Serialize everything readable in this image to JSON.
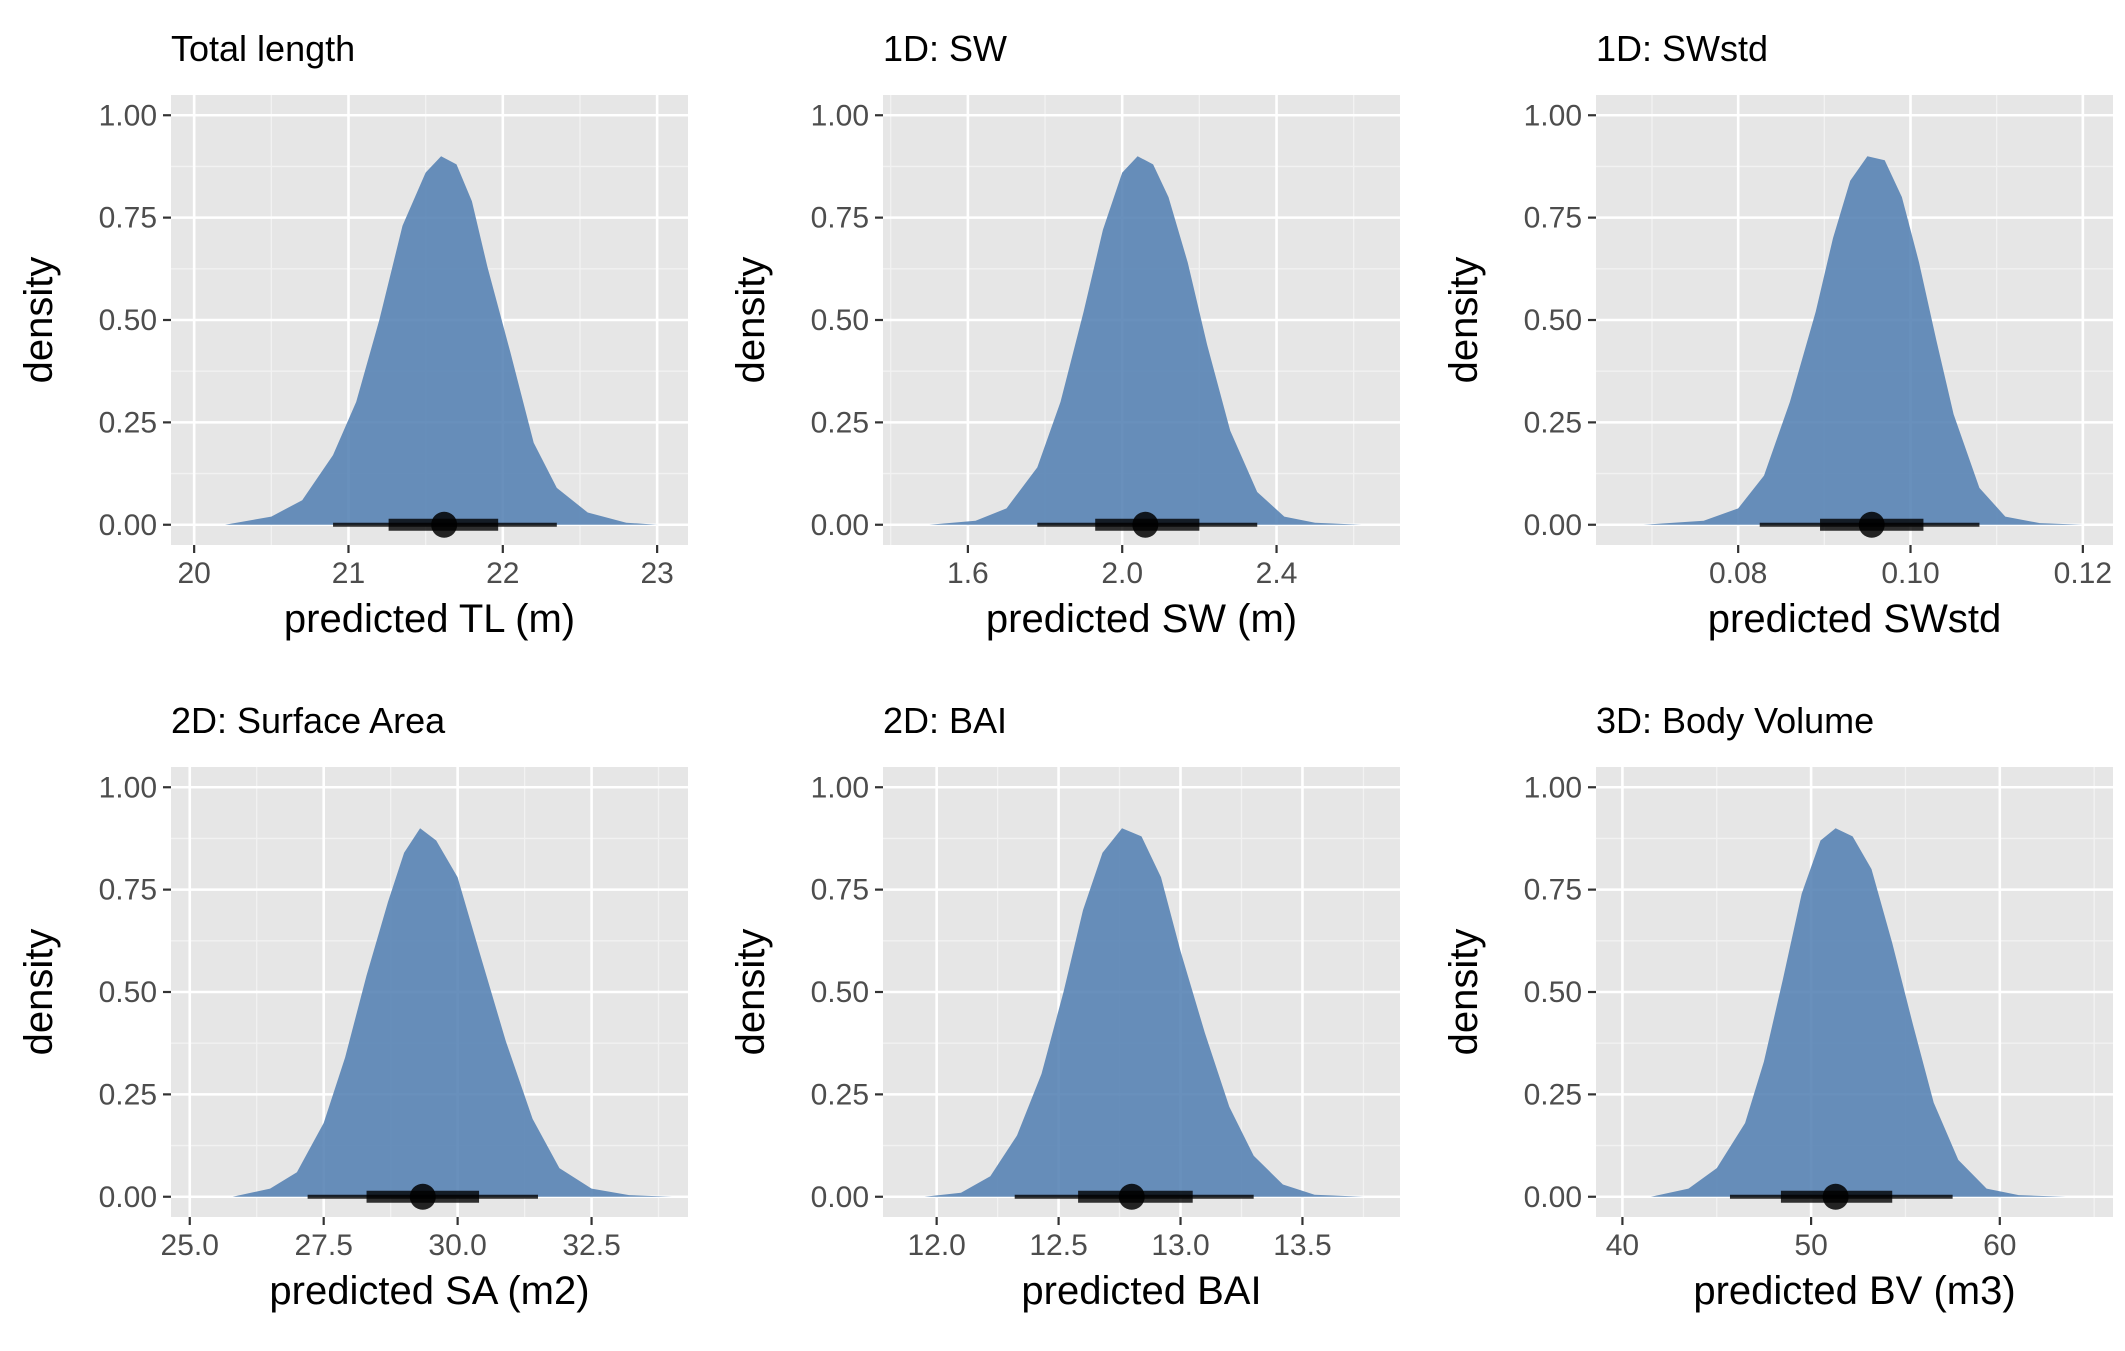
{
  "chart_data": [
    {
      "type": "area",
      "title": "Total length",
      "xlabel": "predicted TL (m)",
      "ylabel": "density",
      "xlim": [
        19.85,
        23.2
      ],
      "ylim": [
        0,
        1
      ],
      "x_ticks": [
        20,
        21,
        22,
        23
      ],
      "x_tick_labels": [
        "20",
        "21",
        "22",
        "23"
      ],
      "y_ticks": [
        0,
        0.25,
        0.5,
        0.75,
        1
      ],
      "y_tick_labels": [
        "0.00",
        "0.25",
        "0.50",
        "0.75",
        "1.00"
      ],
      "x": [
        20.2,
        20.5,
        20.7,
        20.9,
        21.05,
        21.2,
        21.35,
        21.5,
        21.6,
        21.7,
        21.8,
        21.9,
        22.05,
        22.2,
        22.35,
        22.55,
        22.8,
        23.0
      ],
      "y": [
        0.0,
        0.02,
        0.06,
        0.17,
        0.3,
        0.5,
        0.73,
        0.86,
        0.9,
        0.88,
        0.79,
        0.63,
        0.42,
        0.2,
        0.09,
        0.03,
        0.005,
        0.0
      ],
      "point_estimate": 21.62,
      "interval_66": [
        21.26,
        21.97
      ],
      "interval_95": [
        20.9,
        22.35
      ]
    },
    {
      "type": "area",
      "title": "1D: SW",
      "xlabel": "predicted SW (m)",
      "ylabel": "density",
      "xlim": [
        1.38,
        2.72
      ],
      "ylim": [
        0,
        1
      ],
      "x_ticks": [
        1.6,
        2.0,
        2.4
      ],
      "x_tick_labels": [
        "1.6",
        "2.0",
        "2.4"
      ],
      "y_ticks": [
        0,
        0.25,
        0.5,
        0.75,
        1
      ],
      "y_tick_labels": [
        "0.00",
        "0.25",
        "0.50",
        "0.75",
        "1.00"
      ],
      "x": [
        1.5,
        1.62,
        1.7,
        1.78,
        1.84,
        1.9,
        1.95,
        2.0,
        2.04,
        2.08,
        2.12,
        2.17,
        2.22,
        2.28,
        2.35,
        2.42,
        2.5,
        2.62
      ],
      "y": [
        0.0,
        0.01,
        0.04,
        0.14,
        0.3,
        0.52,
        0.72,
        0.86,
        0.9,
        0.88,
        0.8,
        0.64,
        0.44,
        0.23,
        0.08,
        0.02,
        0.005,
        0.0
      ],
      "point_estimate": 2.06,
      "interval_66": [
        1.93,
        2.2
      ],
      "interval_95": [
        1.78,
        2.35
      ]
    },
    {
      "type": "area",
      "title": "1D: SWstd",
      "xlabel": "predicted SWstd",
      "ylabel": "density",
      "xlim": [
        0.0635,
        0.1235
      ],
      "ylim": [
        0,
        1
      ],
      "x_ticks": [
        0.08,
        0.1,
        0.12
      ],
      "x_tick_labels": [
        "0.08",
        "0.10",
        "0.12"
      ],
      "y_ticks": [
        0,
        0.25,
        0.5,
        0.75,
        1
      ],
      "y_tick_labels": [
        "0.00",
        "0.25",
        "0.50",
        "0.75",
        "1.00"
      ],
      "x": [
        0.069,
        0.076,
        0.08,
        0.083,
        0.086,
        0.089,
        0.091,
        0.093,
        0.095,
        0.097,
        0.099,
        0.101,
        0.103,
        0.105,
        0.108,
        0.111,
        0.115,
        0.12
      ],
      "y": [
        0.0,
        0.01,
        0.04,
        0.12,
        0.3,
        0.52,
        0.7,
        0.84,
        0.9,
        0.89,
        0.8,
        0.64,
        0.45,
        0.27,
        0.09,
        0.02,
        0.004,
        0.0
      ],
      "point_estimate": 0.0955,
      "interval_66": [
        0.0895,
        0.1015
      ],
      "interval_95": [
        0.0825,
        0.108
      ]
    },
    {
      "type": "area",
      "title": "2D: Surface Area",
      "xlabel": "predicted SA (m2)",
      "ylabel": "density",
      "xlim": [
        24.65,
        34.3
      ],
      "ylim": [
        0,
        1
      ],
      "x_ticks": [
        25,
        27.5,
        30,
        32.5
      ],
      "x_tick_labels": [
        "25.0",
        "27.5",
        "30.0",
        "32.5"
      ],
      "y_ticks": [
        0,
        0.25,
        0.5,
        0.75,
        1
      ],
      "y_tick_labels": [
        "0.00",
        "0.25",
        "0.50",
        "0.75",
        "1.00"
      ],
      "x": [
        25.8,
        26.5,
        27.0,
        27.5,
        27.9,
        28.3,
        28.7,
        29.0,
        29.3,
        29.6,
        30.0,
        30.4,
        30.9,
        31.4,
        31.9,
        32.5,
        33.2,
        34.0
      ],
      "y": [
        0.0,
        0.02,
        0.06,
        0.18,
        0.34,
        0.54,
        0.72,
        0.84,
        0.9,
        0.87,
        0.78,
        0.6,
        0.38,
        0.19,
        0.07,
        0.02,
        0.004,
        0.0
      ],
      "point_estimate": 29.35,
      "interval_66": [
        28.3,
        30.4
      ],
      "interval_95": [
        27.2,
        31.5
      ]
    },
    {
      "type": "area",
      "title": "2D: BAI",
      "xlabel": "predicted BAI",
      "ylabel": "density",
      "xlim": [
        11.78,
        13.9
      ],
      "ylim": [
        0,
        1
      ],
      "x_ticks": [
        12.0,
        12.5,
        13.0,
        13.5
      ],
      "x_tick_labels": [
        "12.0",
        "12.5",
        "13.0",
        "13.5"
      ],
      "y_ticks": [
        0,
        0.25,
        0.5,
        0.75,
        1
      ],
      "y_tick_labels": [
        "0.00",
        "0.25",
        "0.50",
        "0.75",
        "1.00"
      ],
      "x": [
        11.95,
        12.1,
        12.22,
        12.33,
        12.43,
        12.52,
        12.6,
        12.68,
        12.76,
        12.84,
        12.92,
        13.0,
        13.1,
        13.2,
        13.3,
        13.42,
        13.55,
        13.75
      ],
      "y": [
        0.0,
        0.01,
        0.05,
        0.15,
        0.3,
        0.5,
        0.7,
        0.84,
        0.9,
        0.88,
        0.78,
        0.6,
        0.4,
        0.22,
        0.1,
        0.03,
        0.005,
        0.0
      ],
      "point_estimate": 12.8,
      "interval_66": [
        12.58,
        13.05
      ],
      "interval_95": [
        12.32,
        13.3
      ]
    },
    {
      "type": "area",
      "title": "3D: Body Volume",
      "xlabel": "predicted BV (m3)",
      "ylabel": "density",
      "xlim": [
        38.6,
        66.0
      ],
      "ylim": [
        0,
        1
      ],
      "x_ticks": [
        40,
        50,
        60
      ],
      "x_tick_labels": [
        "40",
        "50",
        "60"
      ],
      "y_ticks": [
        0,
        0.25,
        0.5,
        0.75,
        1
      ],
      "y_tick_labels": [
        "0.00",
        "0.25",
        "0.50",
        "0.75",
        "1.00"
      ],
      "x": [
        41.5,
        43.5,
        45.0,
        46.5,
        47.5,
        48.5,
        49.5,
        50.5,
        51.3,
        52.2,
        53.2,
        54.3,
        55.4,
        56.5,
        57.8,
        59.3,
        61.0,
        63.5
      ],
      "y": [
        0.0,
        0.02,
        0.07,
        0.18,
        0.33,
        0.53,
        0.74,
        0.87,
        0.9,
        0.88,
        0.8,
        0.62,
        0.42,
        0.23,
        0.09,
        0.02,
        0.004,
        0.0
      ],
      "point_estimate": 51.3,
      "interval_66": [
        48.4,
        54.3
      ],
      "interval_95": [
        45.7,
        57.5
      ]
    }
  ]
}
